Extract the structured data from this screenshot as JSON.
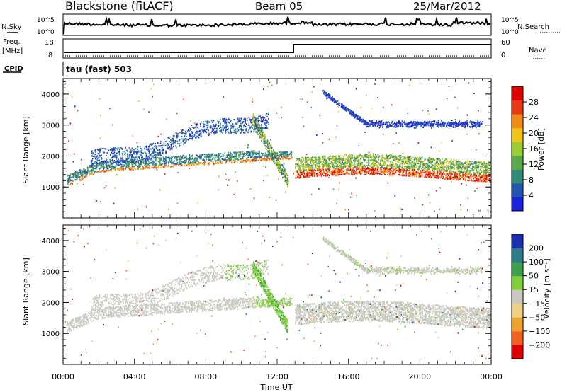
{
  "header": {
    "title": "Blackstone (fitACF)",
    "beam": "Beam 05",
    "date": "25/Mar/2012"
  },
  "noise_panel": {
    "left_label": "N.Sky",
    "right_label": "N.Search",
    "ticks": [
      "10^5",
      "10^0"
    ]
  },
  "freq_panel": {
    "left_label_1": "Freq.",
    "left_label_2": "[MHz]",
    "left_ticks": [
      "18",
      "8"
    ],
    "right_label": "Nave",
    "right_ticks": [
      "60",
      "0"
    ]
  },
  "cpid": {
    "label": "CPID",
    "value": "tau (fast) 503"
  },
  "chart_data": [
    {
      "type": "heatmap",
      "name": "power",
      "ylabel": "Slant Range [km]",
      "xlabel": "Time UT",
      "xlim": [
        0,
        24
      ],
      "ylim": [
        0,
        4500
      ],
      "x_tick_labels": [
        "00:00",
        "04:00",
        "08:00",
        "12:00",
        "16:00",
        "20:00",
        "00:00"
      ],
      "y_tick_labels": [
        "1000",
        "2000",
        "3000",
        "4000"
      ],
      "colorbar": {
        "label": "Power [dB]",
        "range": [
          0,
          30
        ],
        "ticks": [
          "4",
          "8",
          "12",
          "16",
          "20",
          "24",
          "28"
        ],
        "colors": [
          "#1a22e0",
          "#2255b0",
          "#2f8a7a",
          "#59a84a",
          "#9acd32",
          "#f0c419",
          "#f08a19",
          "#e83a12",
          "#e00000"
        ]
      },
      "features": [
        {
          "label": "lower band",
          "time_start": 0.2,
          "time_end": 12.8,
          "range_start": 1000,
          "range_end": 1900
        },
        {
          "label": "rising band",
          "time_start": 1.5,
          "time_end": 11.5,
          "range_start": 1800,
          "range_end": 3500
        },
        {
          "label": "evening band",
          "time_start": 13.0,
          "time_end": 24.0,
          "range_start": 1300,
          "range_end": 2000
        },
        {
          "label": "upper track",
          "time_start": 14.5,
          "time_end": 23.5,
          "range_start": 3000,
          "range_end": 4200
        }
      ]
    },
    {
      "type": "heatmap",
      "name": "velocity",
      "ylabel": "Slant Range [km]",
      "xlabel": "Time UT",
      "xlim": [
        0,
        24
      ],
      "ylim": [
        0,
        4500
      ],
      "x_tick_labels": [
        "00:00",
        "04:00",
        "08:00",
        "12:00",
        "16:00",
        "20:00",
        "00:00"
      ],
      "y_tick_labels": [
        "1000",
        "2000",
        "3000",
        "4000"
      ],
      "colorbar": {
        "label": "Velocity [m s⁻¹]",
        "ticks": [
          "200",
          "100",
          "50",
          "15",
          "−15",
          "−50",
          "−100",
          "−200"
        ],
        "colors": [
          "#1c2fb0",
          "#2f7a8a",
          "#3aa04a",
          "#7fcf3a",
          "#c8c8c0",
          "#f0d080",
          "#f0a030",
          "#f06020",
          "#e00000"
        ]
      }
    }
  ]
}
